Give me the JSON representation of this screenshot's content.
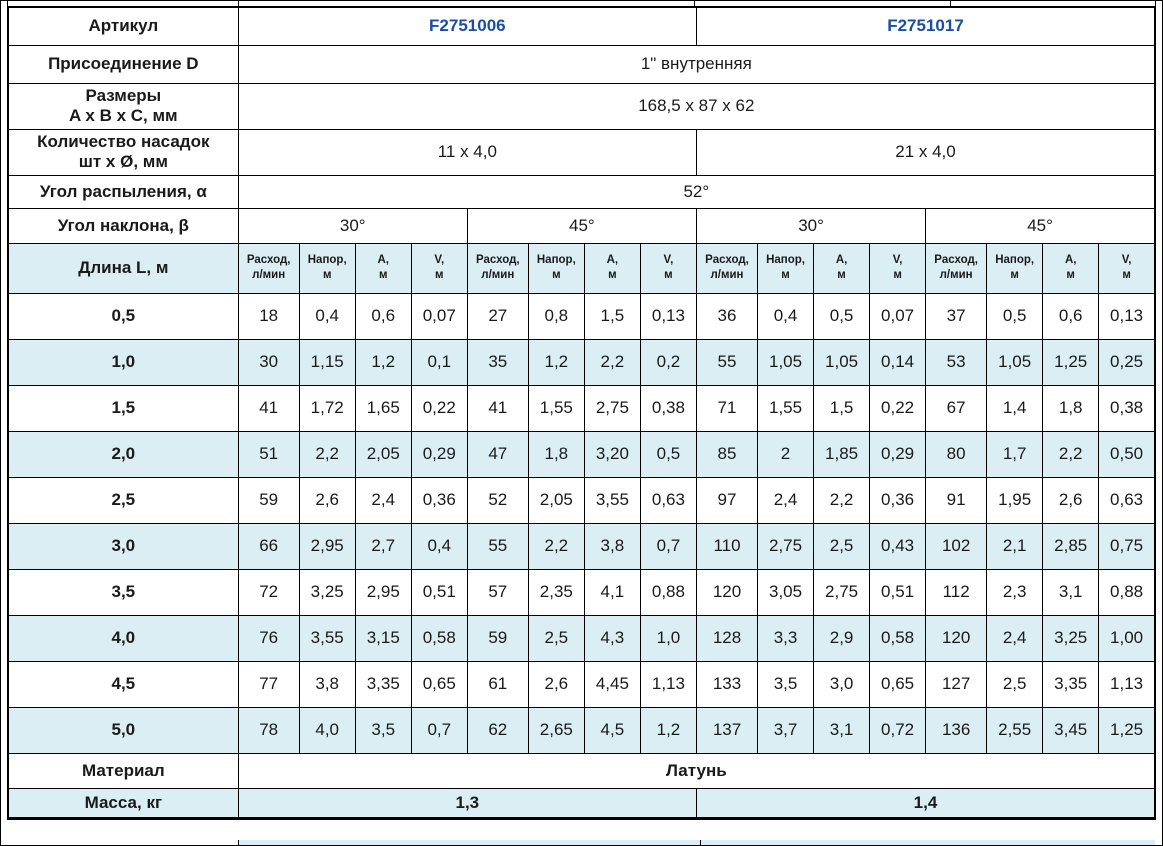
{
  "colors": {
    "stripe_blue": "#daeef3",
    "article_blue": "#1c4da6",
    "border": "#000000"
  },
  "table": {
    "article": {
      "label": "Артикул",
      "values": [
        "F2751006",
        "F2751017"
      ]
    },
    "connection": {
      "label": "Присоединение D",
      "value": "1\" внутренняя"
    },
    "dimensions": {
      "label_line1": "Размеры",
      "label_line2": "A x B x C, мм",
      "value": "168,5 x 87 x 62"
    },
    "nozzles": {
      "label_line1": "Количество насадок",
      "label_line2": "шт х Ø, мм",
      "values": [
        "11 x 4,0",
        "21 x 4,0"
      ]
    },
    "spray_angle": {
      "label": "Угол распыления, α",
      "value": "52°"
    },
    "tilt_angle": {
      "label": "Угол наклона, β",
      "values": [
        "30°",
        "45°",
        "30°",
        "45°"
      ]
    },
    "length_header": {
      "label": "Длина L, м"
    },
    "subheaders": [
      {
        "line1": "Расход,",
        "line2": "л/мин"
      },
      {
        "line1": "Напор,",
        "line2": "м"
      },
      {
        "line1": "A,",
        "line2": "м"
      },
      {
        "line1": "V,",
        "line2": "м"
      }
    ],
    "rows": [
      {
        "length": "0,5",
        "values": [
          "18",
          "0,4",
          "0,6",
          "0,07",
          "27",
          "0,8",
          "1,5",
          "0,13",
          "36",
          "0,4",
          "0,5",
          "0,07",
          "37",
          "0,5",
          "0,6",
          "0,13"
        ]
      },
      {
        "length": "1,0",
        "values": [
          "30",
          "1,15",
          "1,2",
          "0,1",
          "35",
          "1,2",
          "2,2",
          "0,2",
          "55",
          "1,05",
          "1,05",
          "0,14",
          "53",
          "1,05",
          "1,25",
          "0,25"
        ]
      },
      {
        "length": "1,5",
        "values": [
          "41",
          "1,72",
          "1,65",
          "0,22",
          "41",
          "1,55",
          "2,75",
          "0,38",
          "71",
          "1,55",
          "1,5",
          "0,22",
          "67",
          "1,4",
          "1,8",
          "0,38"
        ]
      },
      {
        "length": "2,0",
        "values": [
          "51",
          "2,2",
          "2,05",
          "0,29",
          "47",
          "1,8",
          "3,20",
          "0,5",
          "85",
          "2",
          "1,85",
          "0,29",
          "80",
          "1,7",
          "2,2",
          "0,50"
        ]
      },
      {
        "length": "2,5",
        "values": [
          "59",
          "2,6",
          "2,4",
          "0,36",
          "52",
          "2,05",
          "3,55",
          "0,63",
          "97",
          "2,4",
          "2,2",
          "0,36",
          "91",
          "1,95",
          "2,6",
          "0,63"
        ]
      },
      {
        "length": "3,0",
        "values": [
          "66",
          "2,95",
          "2,7",
          "0,4",
          "55",
          "2,2",
          "3,8",
          "0,7",
          "110",
          "2,75",
          "2,5",
          "0,43",
          "102",
          "2,1",
          "2,85",
          "0,75"
        ]
      },
      {
        "length": "3,5",
        "values": [
          "72",
          "3,25",
          "2,95",
          "0,51",
          "57",
          "2,35",
          "4,1",
          "0,88",
          "120",
          "3,05",
          "2,75",
          "0,51",
          "112",
          "2,3",
          "3,1",
          "0,88"
        ]
      },
      {
        "length": "4,0",
        "values": [
          "76",
          "3,55",
          "3,15",
          "0,58",
          "59",
          "2,5",
          "4,3",
          "1,0",
          "128",
          "3,3",
          "2,9",
          "0,58",
          "120",
          "2,4",
          "3,25",
          "1,00"
        ]
      },
      {
        "length": "4,5",
        "values": [
          "77",
          "3,8",
          "3,35",
          "0,65",
          "61",
          "2,6",
          "4,45",
          "1,13",
          "133",
          "3,5",
          "3,0",
          "0,65",
          "127",
          "2,5",
          "3,35",
          "1,13"
        ]
      },
      {
        "length": "5,0",
        "values": [
          "78",
          "4,0",
          "3,5",
          "0,7",
          "62",
          "2,65",
          "4,5",
          "1,2",
          "137",
          "3,7",
          "3,1",
          "0,72",
          "136",
          "2,55",
          "3,45",
          "1,25"
        ]
      }
    ],
    "material": {
      "label": "Материал",
      "value": "Латунь"
    },
    "mass": {
      "label": "Масса, кг",
      "values": [
        "1,3",
        "1,4"
      ]
    }
  }
}
